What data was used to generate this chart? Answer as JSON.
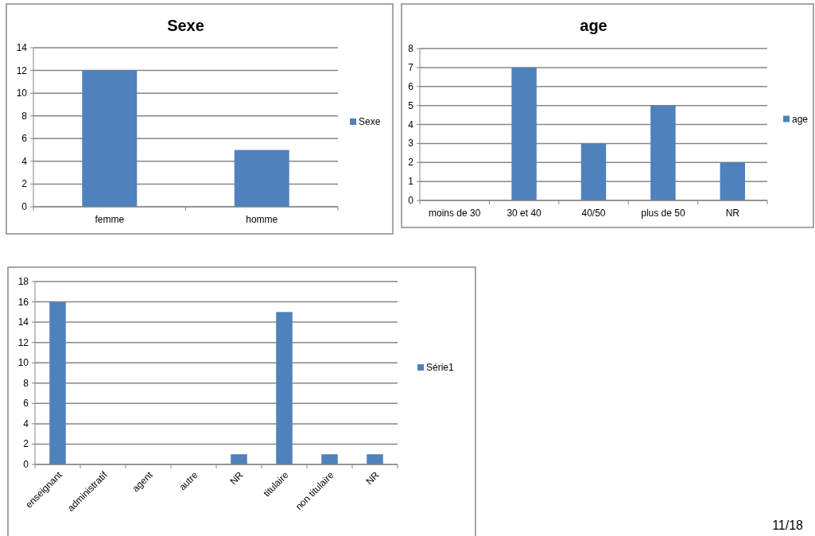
{
  "chart_data": [
    {
      "type": "bar",
      "title": "Sexe",
      "categories": [
        "femme",
        "homme"
      ],
      "series": [
        {
          "name": "Sexe",
          "color": "#4f81bd",
          "values": [
            12,
            5
          ]
        }
      ],
      "ylim": [
        0,
        14
      ],
      "yticks": [
        0,
        2,
        4,
        6,
        8,
        10,
        12,
        14
      ],
      "grid": "y",
      "legend": "right"
    },
    {
      "type": "bar",
      "title": "age",
      "categories": [
        "moins de 30",
        "30 et 40",
        "40/50",
        "plus de 50",
        "NR"
      ],
      "series": [
        {
          "name": "age",
          "color": "#4f81bd",
          "values": [
            0,
            7,
            3,
            5,
            2
          ]
        }
      ],
      "ylim": [
        0,
        8
      ],
      "yticks": [
        0,
        1,
        2,
        3,
        4,
        5,
        6,
        7,
        8
      ],
      "grid": "y",
      "legend": "right"
    },
    {
      "type": "bar",
      "categories": [
        "enseignant",
        "administratif",
        "agent",
        "autre",
        "NR",
        "titulaire",
        "non titulaire",
        "NR"
      ],
      "series": [
        {
          "name": "Série1",
          "color": "#4f81bd",
          "values": [
            16,
            0,
            0,
            0,
            1,
            15,
            1,
            1
          ]
        }
      ],
      "ylim": [
        0,
        18
      ],
      "yticks": [
        0,
        2,
        4,
        6,
        8,
        10,
        12,
        14,
        16,
        18
      ],
      "grid": "y",
      "legend": "right",
      "annotations": [
        "11/18"
      ]
    }
  ]
}
